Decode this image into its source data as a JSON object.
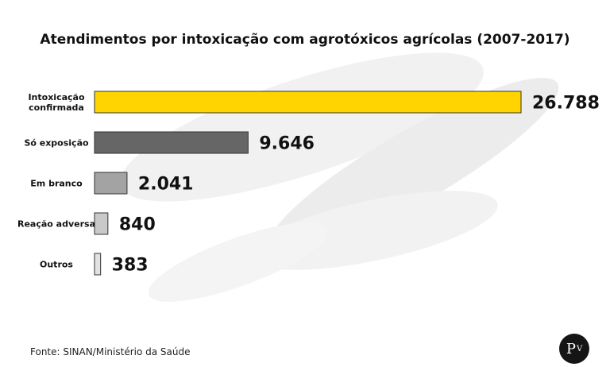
{
  "chart_data": {
    "type": "bar",
    "orientation": "horizontal",
    "title": "Atendimentos por intoxicação com agrotóxicos agrícolas (2007-2017)",
    "categories": [
      [
        "Intoxicação",
        "confirmada"
      ],
      [
        "Só exposição"
      ],
      [
        "Em branco"
      ],
      [
        "Reação adversa"
      ],
      [
        "Outros"
      ]
    ],
    "values": [
      26788,
      9646,
      2041,
      840,
      383
    ],
    "value_labels": [
      "26.788",
      "9.646",
      "2.041",
      "840",
      "383"
    ],
    "bar_colors": [
      "#ffd400",
      "#666666",
      "#a3a3a3",
      "#c9c9c9",
      "#e2e2e2"
    ],
    "xlim": [
      0,
      26788
    ],
    "grid": false,
    "legend": "none"
  },
  "source": "Fonte: SINAN/Ministério da Saúde",
  "logo": {
    "text": "P",
    "superscript": "V"
  }
}
